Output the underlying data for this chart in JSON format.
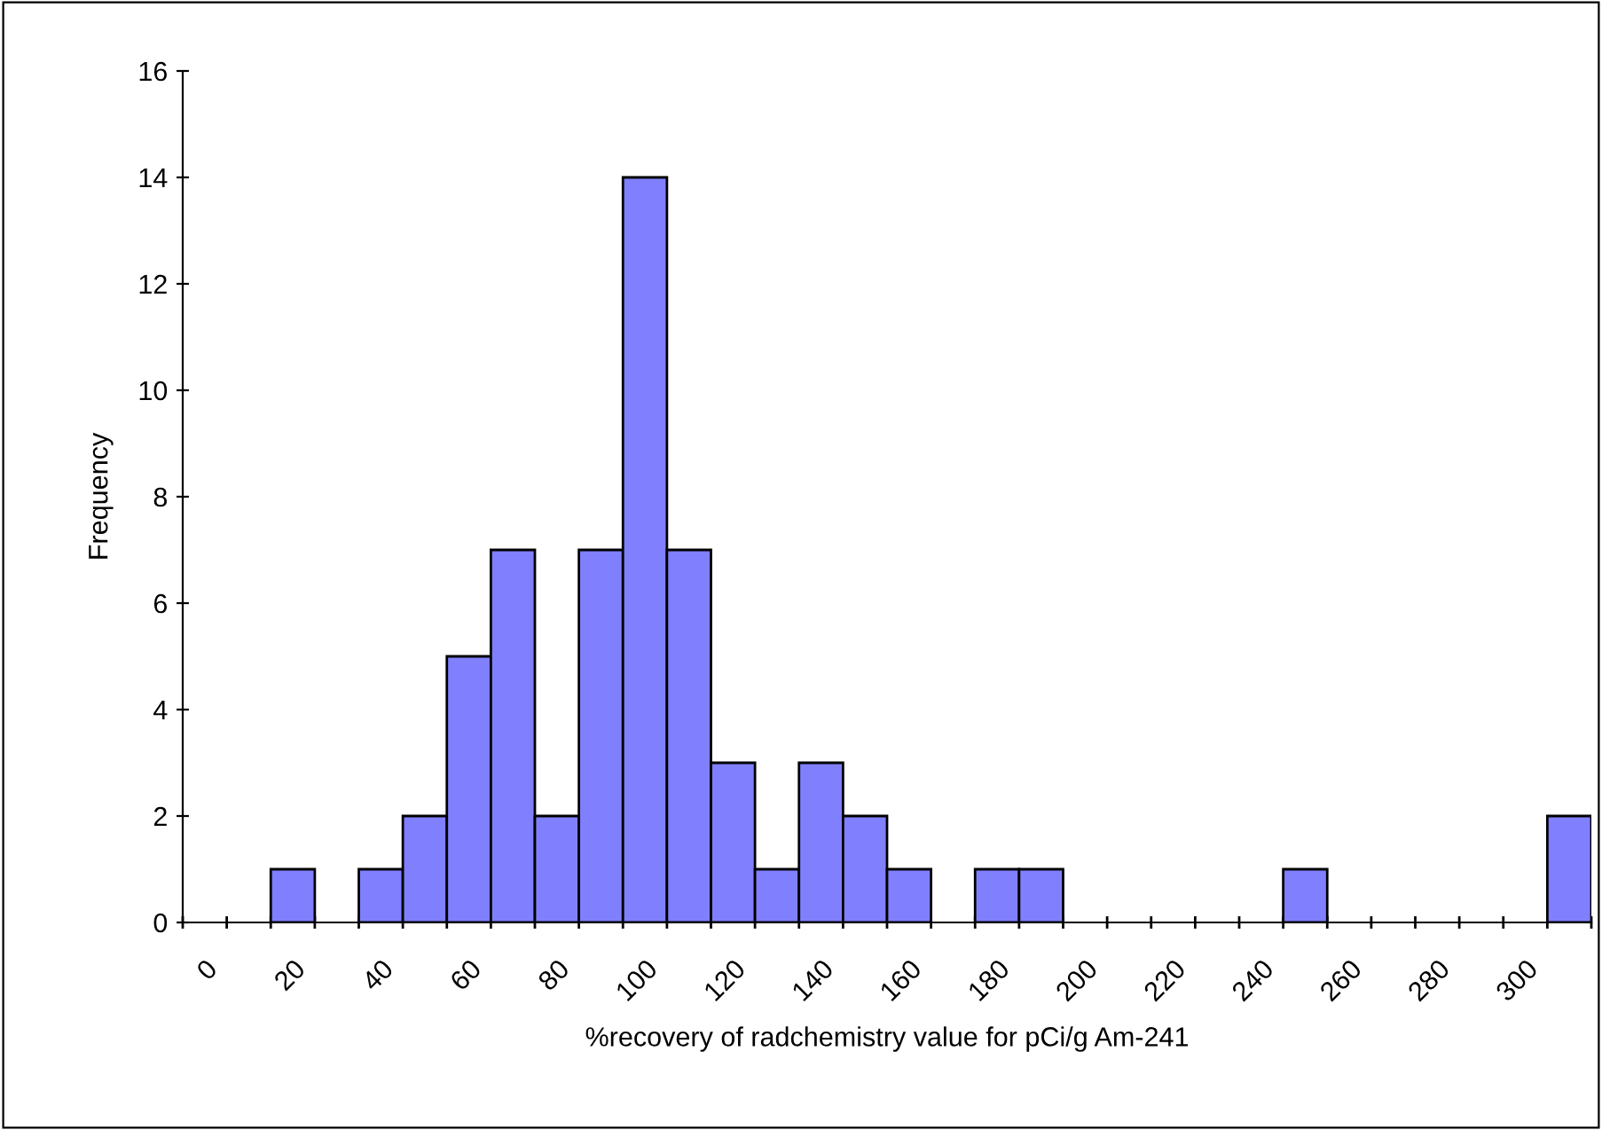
{
  "chart_data": {
    "type": "bar",
    "xlabel": "%recovery of radchemistry value for pCi/g Am-241",
    "ylabel": "Frequency",
    "categories": [
      "0",
      null,
      "20",
      null,
      "40",
      null,
      "60",
      null,
      "80",
      null,
      "100",
      null,
      "120",
      null,
      "140",
      null,
      "160",
      null,
      "180",
      null,
      "200",
      null,
      "220",
      null,
      "240",
      null,
      "260",
      null,
      "280",
      null,
      "300",
      null
    ],
    "values": [
      0,
      0,
      1,
      0,
      1,
      2,
      5,
      7,
      2,
      7,
      14,
      7,
      3,
      1,
      3,
      2,
      1,
      0,
      1,
      1,
      0,
      0,
      0,
      0,
      0,
      1,
      0,
      0,
      0,
      0,
      0,
      2
    ],
    "color": "#8080ff",
    "ylim": [
      0,
      16
    ],
    "yticks": [
      0,
      2,
      4,
      6,
      8,
      10,
      12,
      14,
      16
    ],
    "grid": false,
    "legend": false
  }
}
